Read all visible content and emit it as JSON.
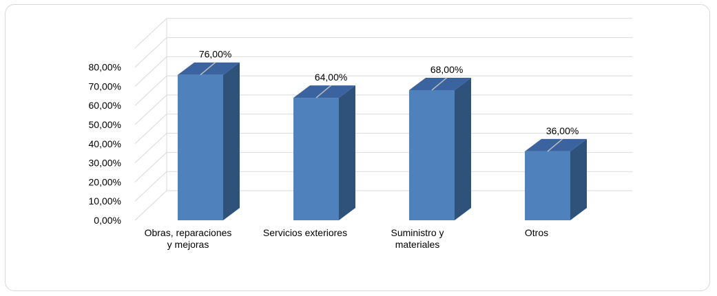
{
  "chart_data": {
    "type": "bar",
    "style": "3d-column",
    "categories": [
      [
        "Obras, reparaciones",
        "y mejoras"
      ],
      [
        "Servicios exteriores"
      ],
      [
        "Suministro y",
        "materiales"
      ],
      [
        "Otros"
      ]
    ],
    "values": [
      76,
      64,
      68,
      36
    ],
    "data_labels": [
      "76,00%",
      "64,00%",
      "68,00%",
      "36,00%"
    ],
    "yticks": [
      "0,00%",
      "10,00%",
      "20,00%",
      "30,00%",
      "40,00%",
      "50,00%",
      "60,00%",
      "70,00%",
      "80,00%"
    ],
    "ylim": [
      0,
      80
    ],
    "grid": true,
    "legend": "none",
    "colors": {
      "front": "#4f81bd",
      "side": "#2f527a",
      "top": "#3a63a0",
      "grid": "#d9d9d9"
    }
  }
}
